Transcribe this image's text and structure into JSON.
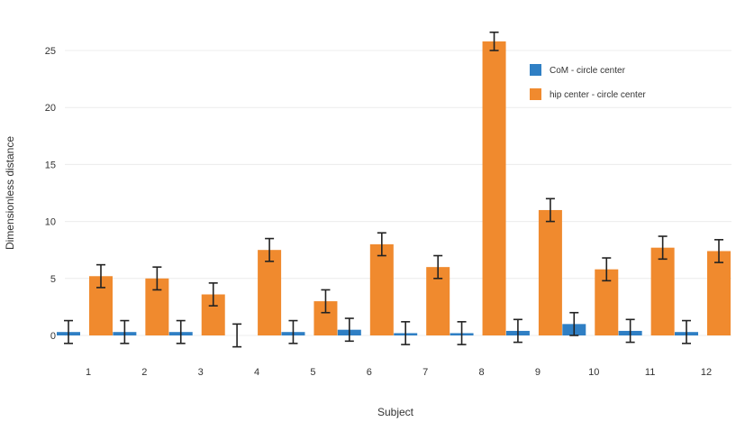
{
  "chart_data": {
    "type": "bar",
    "categories": [
      "1",
      "2",
      "3",
      "4",
      "5",
      "6",
      "7",
      "8",
      "9",
      "10",
      "11",
      "12"
    ],
    "xlabel": "Subject",
    "ylabel": "Dimensionless distance",
    "ylim": [
      0,
      27
    ],
    "yticks": [
      0,
      5,
      10,
      15,
      20,
      25
    ],
    "grid": true,
    "legend_position": "top-right",
    "series": [
      {
        "name": "CoM - circle center",
        "color": "#2f7fc4",
        "values": [
          0.3,
          0.3,
          0.3,
          0.0,
          0.3,
          0.5,
          0.2,
          0.2,
          0.4,
          1.0,
          0.4,
          0.3
        ],
        "errors": [
          1.0,
          1.0,
          1.0,
          1.0,
          1.0,
          1.0,
          1.0,
          1.0,
          1.0,
          1.0,
          1.0,
          1.0
        ]
      },
      {
        "name": "hip center - circle center",
        "color": "#f08a2e",
        "values": [
          5.2,
          5.0,
          3.6,
          7.5,
          3.0,
          8.0,
          6.0,
          25.8,
          11.0,
          5.8,
          7.7,
          7.4
        ],
        "errors": [
          1.0,
          1.0,
          1.0,
          1.0,
          1.0,
          1.0,
          1.0,
          0.8,
          1.0,
          1.0,
          1.0,
          1.0
        ]
      }
    ]
  }
}
